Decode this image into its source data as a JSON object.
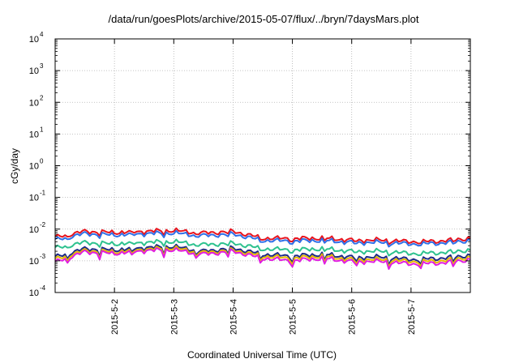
{
  "chart_data": {
    "type": "line",
    "title": "/data/run/goesPlots/archive/2015-05-07/flux/../bryn/7daysMars.plot",
    "xlabel": "Coordinated Universal Time (UTC)",
    "ylabel": "cGy/day",
    "y_scale": "log",
    "ylim": [
      0.0001,
      10000
    ],
    "xlim": [
      "2015-05-01 00:00",
      "2015-05-08 00:00"
    ],
    "grid": true,
    "x_ticks": [
      "2015-5-2",
      "2015-5-3",
      "2015-5-4",
      "2015-5-5",
      "2015-5-6",
      "2015-5-7"
    ],
    "y_ticks": [
      {
        "base": "10",
        "exp": "-4",
        "value": 0.0001
      },
      {
        "base": "10",
        "exp": "-3",
        "value": 0.001
      },
      {
        "base": "10",
        "exp": "-2",
        "value": 0.01
      },
      {
        "base": "10",
        "exp": "-1",
        "value": 0.1
      },
      {
        "base": "10",
        "exp": "0",
        "value": 1
      },
      {
        "base": "10",
        "exp": "1",
        "value": 10
      },
      {
        "base": "10",
        "exp": "2",
        "value": 100
      },
      {
        "base": "10",
        "exp": "3",
        "value": 1000
      },
      {
        "base": "10",
        "exp": "4",
        "value": 10000
      }
    ],
    "x_days": [
      0,
      0.5,
      1,
      1.5,
      2,
      2.5,
      3,
      3.5,
      4,
      4.5,
      5,
      5.5,
      6,
      6.5,
      7
    ],
    "series": [
      {
        "color": "#e8141e",
        "values": [
          0.0055,
          0.0085,
          0.0078,
          0.0085,
          0.009,
          0.0075,
          0.0085,
          0.0052,
          0.005,
          0.0052,
          0.0045,
          0.0045,
          0.004,
          0.0042,
          0.0052
        ]
      },
      {
        "color": "#2f6fe8",
        "values": [
          0.0045,
          0.0072,
          0.0065,
          0.0072,
          0.0075,
          0.0062,
          0.007,
          0.0044,
          0.0042,
          0.0044,
          0.0038,
          0.0038,
          0.0034,
          0.0036,
          0.0044
        ]
      },
      {
        "color": "#2ec28f",
        "values": [
          0.0025,
          0.0038,
          0.0034,
          0.0038,
          0.004,
          0.0032,
          0.0036,
          0.0024,
          0.0022,
          0.0024,
          0.002,
          0.002,
          0.0017,
          0.0018,
          0.0022
        ]
      },
      {
        "color": "#1e2a88",
        "values": [
          0.0013,
          0.0024,
          0.0022,
          0.0026,
          0.0028,
          0.002,
          0.0025,
          0.0016,
          0.0014,
          0.0016,
          0.0013,
          0.0013,
          0.0011,
          0.0012,
          0.0015
        ]
      },
      {
        "color": "#e6b800",
        "values": [
          0.0011,
          0.0021,
          0.0019,
          0.0023,
          0.0025,
          0.0018,
          0.0022,
          0.0014,
          0.0012,
          0.0014,
          0.0011,
          0.0011,
          0.00095,
          0.001,
          0.0013
        ]
      },
      {
        "color": "#e01ee0",
        "values": [
          0.0009,
          0.0019,
          0.0017,
          0.0021,
          0.0022,
          0.0016,
          0.002,
          0.0012,
          0.001,
          0.0012,
          0.00095,
          0.00095,
          0.0008,
          0.00085,
          0.0011
        ]
      }
    ]
  }
}
